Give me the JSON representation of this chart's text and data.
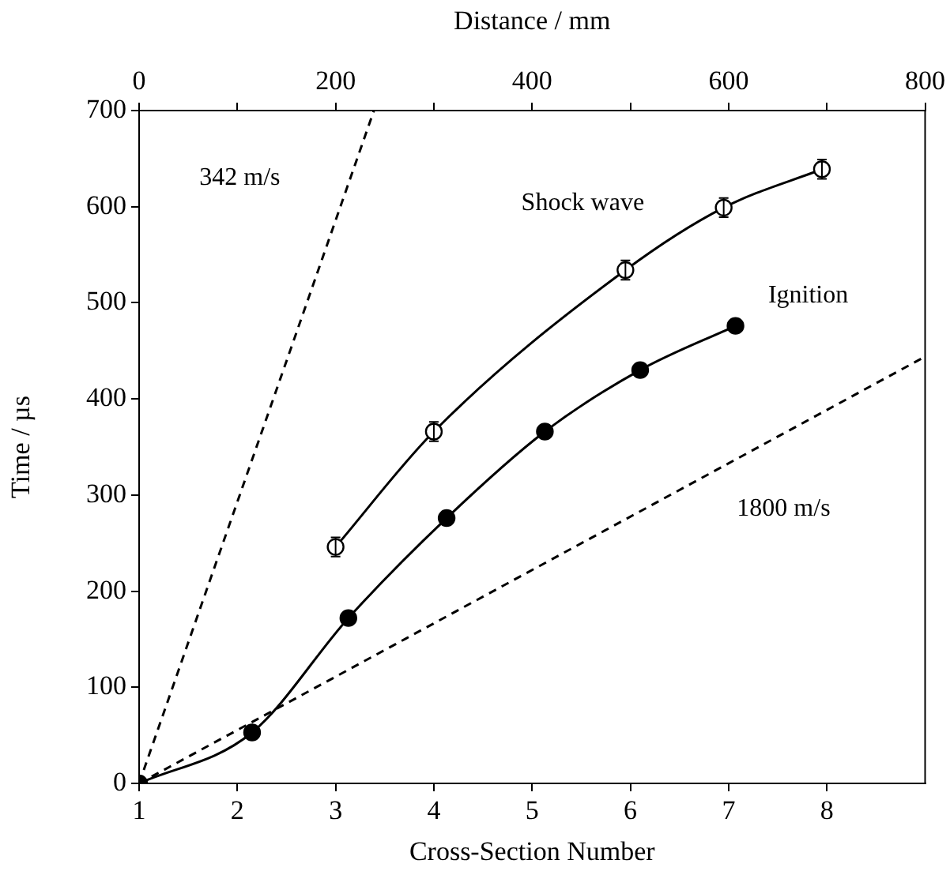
{
  "chart_data": {
    "type": "line",
    "xlabel": "Cross-Section Number",
    "x2label": "Distance / mm",
    "ylabel": "Time / µs",
    "xlim": [
      1,
      9
    ],
    "xticks": [
      1,
      2,
      3,
      4,
      5,
      6,
      7,
      8
    ],
    "x2lim": [
      0,
      800
    ],
    "x2ticks": [
      0,
      {
        "value": 100,
        "label": null
      },
      200,
      {
        "value": 300,
        "label": null
      },
      400,
      {
        "value": 500,
        "label": null
      },
      600,
      {
        "value": 700,
        "label": null
      },
      800
    ],
    "ylim": [
      0,
      700
    ],
    "yticks": [
      0,
      100,
      200,
      300,
      400,
      500,
      600,
      700
    ],
    "grid": false,
    "legend": false,
    "series": [
      {
        "name": "Shock wave",
        "color": "#000000",
        "marker": "open_circle",
        "line_style": "solid",
        "x": [
          3.0,
          4.0,
          5.95,
          6.95,
          7.95
        ],
        "values": [
          246,
          366,
          534,
          599,
          639
        ],
        "errors": [
          10,
          10,
          10,
          10,
          10
        ]
      },
      {
        "name": "Ignition",
        "color": "#000000",
        "marker": "circle",
        "line_style": "solid",
        "x": [
          1,
          2.15,
          3.13,
          4.13,
          5.13,
          6.1,
          7.07
        ],
        "values": [
          0,
          53,
          172,
          276,
          366,
          430,
          476
        ]
      },
      {
        "color": "#000000",
        "marker": "none",
        "line_style": "dashed",
        "x": [
          1,
          3.39
        ],
        "values": [
          0,
          700
        ]
      },
      {
        "color": "#000000",
        "marker": "none",
        "line_style": "dashed",
        "x": [
          1,
          9
        ],
        "values": [
          0,
          444
        ]
      }
    ],
    "annotations": [
      "342 m/s",
      "1800 m/s"
    ]
  }
}
